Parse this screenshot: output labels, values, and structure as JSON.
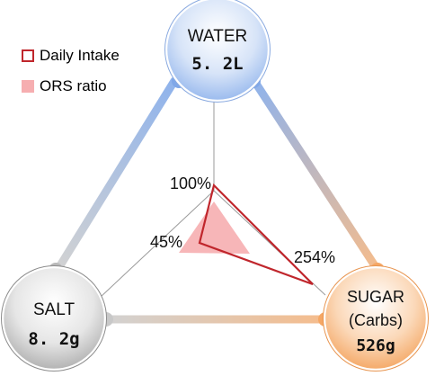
{
  "legend": {
    "daily_intake": "Daily Intake",
    "ors_ratio": "ORS ratio"
  },
  "nodes": {
    "water": {
      "name": "WATER",
      "value": "5. 2L"
    },
    "salt": {
      "name": "SALT",
      "value": "8. 2g"
    },
    "sugar": {
      "name": "SUGAR",
      "subname": "(Carbs)",
      "value": "526g"
    }
  },
  "percent_labels": {
    "water": "100%",
    "salt": "45%",
    "sugar": "254%"
  },
  "colors": {
    "water": "#7fa7e8",
    "salt": "#b8b8b8",
    "sugar": "#f5a765",
    "daily_intake_line": "#c0262c",
    "ors_fill": "#f6aeb0"
  }
}
